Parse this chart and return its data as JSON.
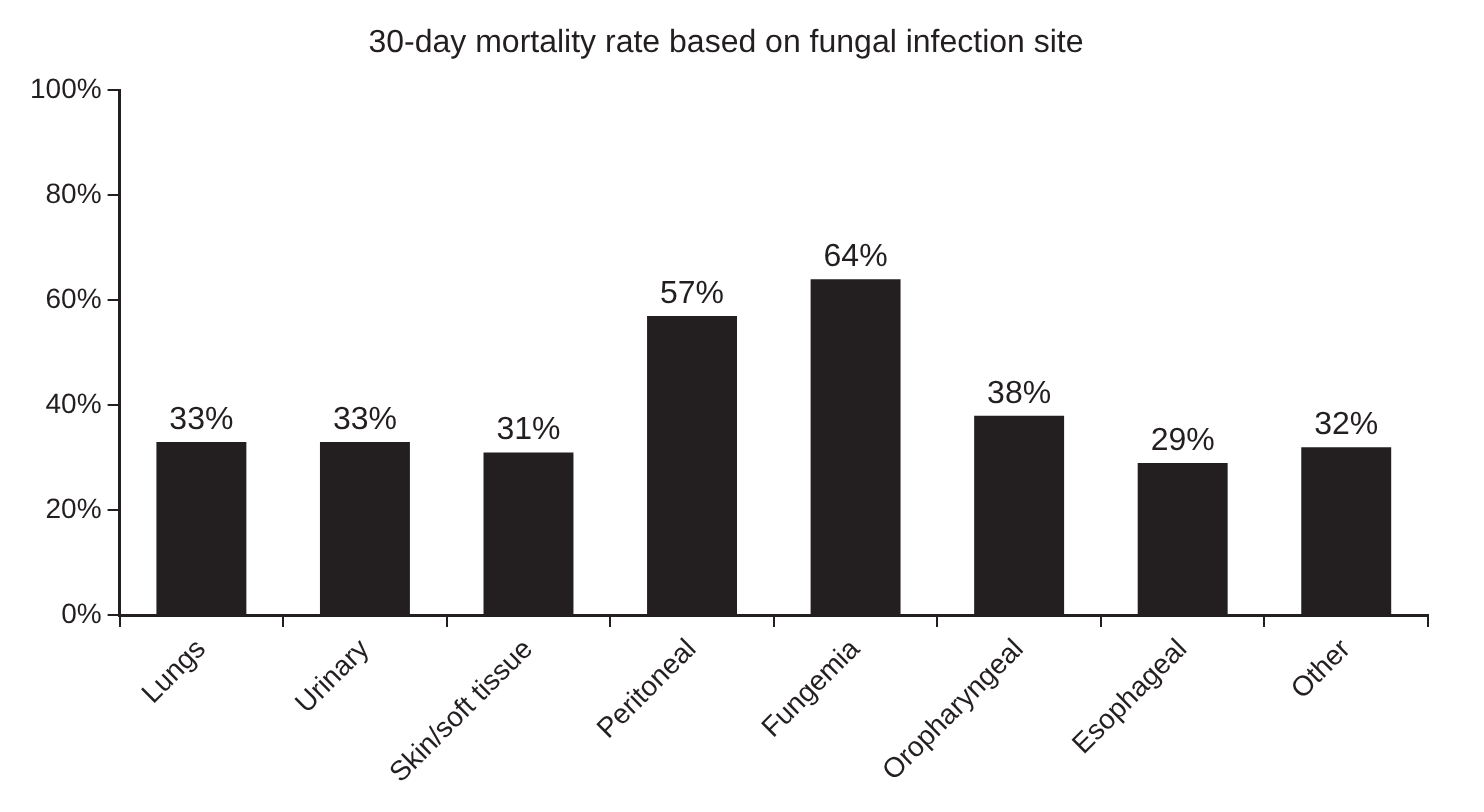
{
  "chart_data": {
    "type": "bar",
    "title": "30-day mortality rate based on fungal infection site",
    "categories": [
      "Lungs",
      "Urinary",
      "Skin/soft tissue",
      "Peritoneal",
      "Fungemia",
      "Oropharyngeal",
      "Esophageal",
      "Other"
    ],
    "values": [
      33,
      33,
      31,
      57,
      64,
      38,
      29,
      32
    ],
    "value_labels": [
      "33%",
      "33%",
      "31%",
      "57%",
      "64%",
      "38%",
      "29%",
      "32%"
    ],
    "color": "#231f20",
    "ylim": [
      0,
      100
    ],
    "yticks": [
      {
        "value": 0,
        "label": "0%"
      },
      {
        "value": 20,
        "label": "20%"
      },
      {
        "value": 40,
        "label": "40%"
      },
      {
        "value": 60,
        "label": "60%"
      },
      {
        "value": 80,
        "label": "80%"
      },
      {
        "value": 100,
        "label": "100%"
      }
    ],
    "grid": false,
    "legend": false
  }
}
